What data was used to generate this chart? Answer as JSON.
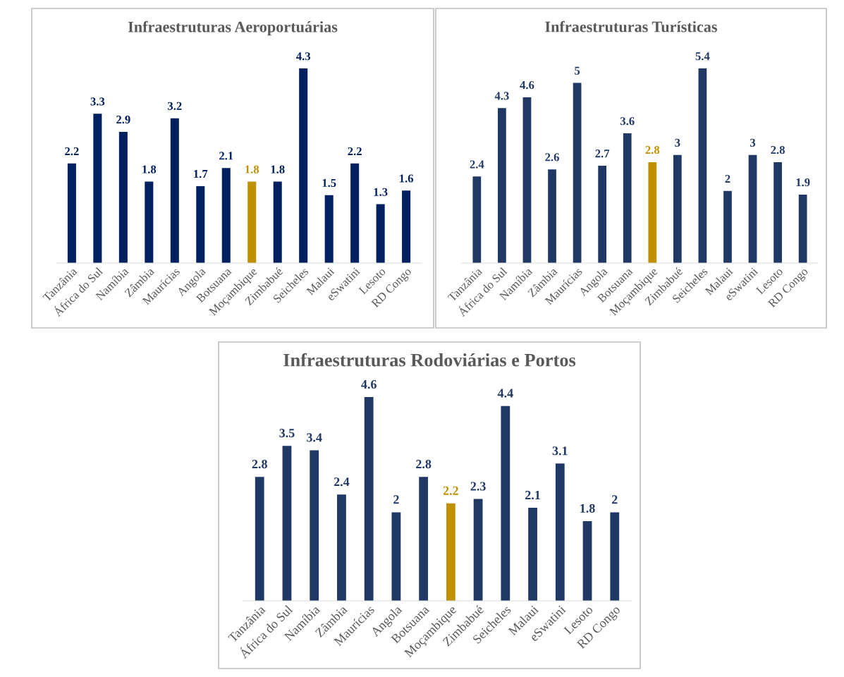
{
  "chart_data": [
    {
      "type": "bar",
      "title": "Infraestruturas Aeroportuárias",
      "categories": [
        "Tanzânia",
        "África do Sul",
        "Namíbia",
        "Zâmbia",
        "Maurícias",
        "Angola",
        "Botsuana",
        "Moçambique",
        "Zimbabué",
        "Seicheles",
        "Malaui",
        "eSwatini",
        "Lesoto",
        "RD Congo"
      ],
      "values": [
        2.2,
        3.3,
        2.9,
        1.8,
        3.2,
        1.7,
        2.1,
        1.8,
        1.8,
        4.3,
        1.5,
        2.2,
        1.3,
        1.6
      ],
      "colors": [
        "#002060",
        "#002060",
        "#002060",
        "#002060",
        "#002060",
        "#002060",
        "#002060",
        "#bf9000",
        "#002060",
        "#002060",
        "#002060",
        "#002060",
        "#002060",
        "#002060"
      ],
      "data_labels": true,
      "grid": false,
      "legend": false,
      "tick_labels": "x"
    },
    {
      "type": "bar",
      "title": "Infraestruturas Turísticas",
      "categories": [
        "Tanzânia",
        "África do Sul",
        "Namíbia",
        "Zâmbia",
        "Maurícias",
        "Angola",
        "Botsuana",
        "Moçambique",
        "Zimbabué",
        "Seicheles",
        "Malaui",
        "eSwatini",
        "Lesoto",
        "RD Congo"
      ],
      "values": [
        2.4,
        4.3,
        4.6,
        2.6,
        5,
        2.7,
        3.6,
        2.8,
        3,
        5.4,
        2,
        3,
        2.8,
        1.9
      ],
      "colors": [
        "#203864",
        "#203864",
        "#203864",
        "#203864",
        "#203864",
        "#203864",
        "#203864",
        "#bf9000",
        "#203864",
        "#203864",
        "#203864",
        "#203864",
        "#203864",
        "#203864"
      ],
      "data_labels": true,
      "grid": false,
      "legend": false,
      "tick_labels": "x"
    },
    {
      "type": "bar",
      "title": "Infraestruturas Rodoviárias e Portos",
      "categories": [
        "Tanzânia",
        "África do Sul",
        "Namíbia",
        "Zâmbia",
        "Maurícias",
        "Angola",
        "Botsuana",
        "Moçambique",
        "Zimbabué",
        "Seicheles",
        "Malaui",
        "eSwatini",
        "Lesoto",
        "RD Congo"
      ],
      "values": [
        2.8,
        3.5,
        3.4,
        2.4,
        4.6,
        2,
        2.8,
        2.2,
        2.3,
        4.4,
        2.1,
        3.1,
        1.8,
        2
      ],
      "colors": [
        "#203864",
        "#203864",
        "#203864",
        "#203864",
        "#203864",
        "#203864",
        "#203864",
        "#bf9000",
        "#203864",
        "#203864",
        "#203864",
        "#203864",
        "#203864",
        "#203864"
      ],
      "data_labels": true,
      "grid": false,
      "legend": false,
      "tick_labels": "x"
    }
  ]
}
